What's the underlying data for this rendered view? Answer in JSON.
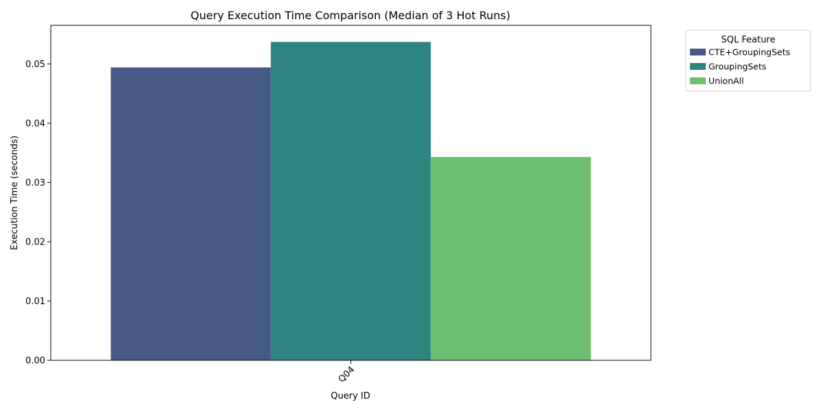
{
  "chart_data": {
    "type": "bar",
    "title": "Query Execution Time Comparison (Median of 3 Hot Runs)",
    "xlabel": "Query ID",
    "ylabel": "Execution Time (seconds)",
    "categories": [
      "Q04"
    ],
    "series": [
      {
        "name": "CTE+GroupingSets",
        "color": "#465a85",
        "values": [
          0.0494
        ]
      },
      {
        "name": "GroupingSets",
        "color": "#2e847e",
        "values": [
          0.0537
        ]
      },
      {
        "name": "UnionAll",
        "color": "#6dbf6f",
        "values": [
          0.0343
        ]
      }
    ],
    "ylim": [
      0,
      0.0565
    ],
    "yticks": [
      0.0,
      0.01,
      0.02,
      0.03,
      0.04,
      0.05
    ],
    "ytick_labels": [
      "0.00",
      "0.01",
      "0.02",
      "0.03",
      "0.04",
      "0.05"
    ],
    "x_tick_rotation": 45,
    "grid": false,
    "legend": {
      "title": "SQL Feature",
      "placement": "outside-upper-right"
    }
  }
}
